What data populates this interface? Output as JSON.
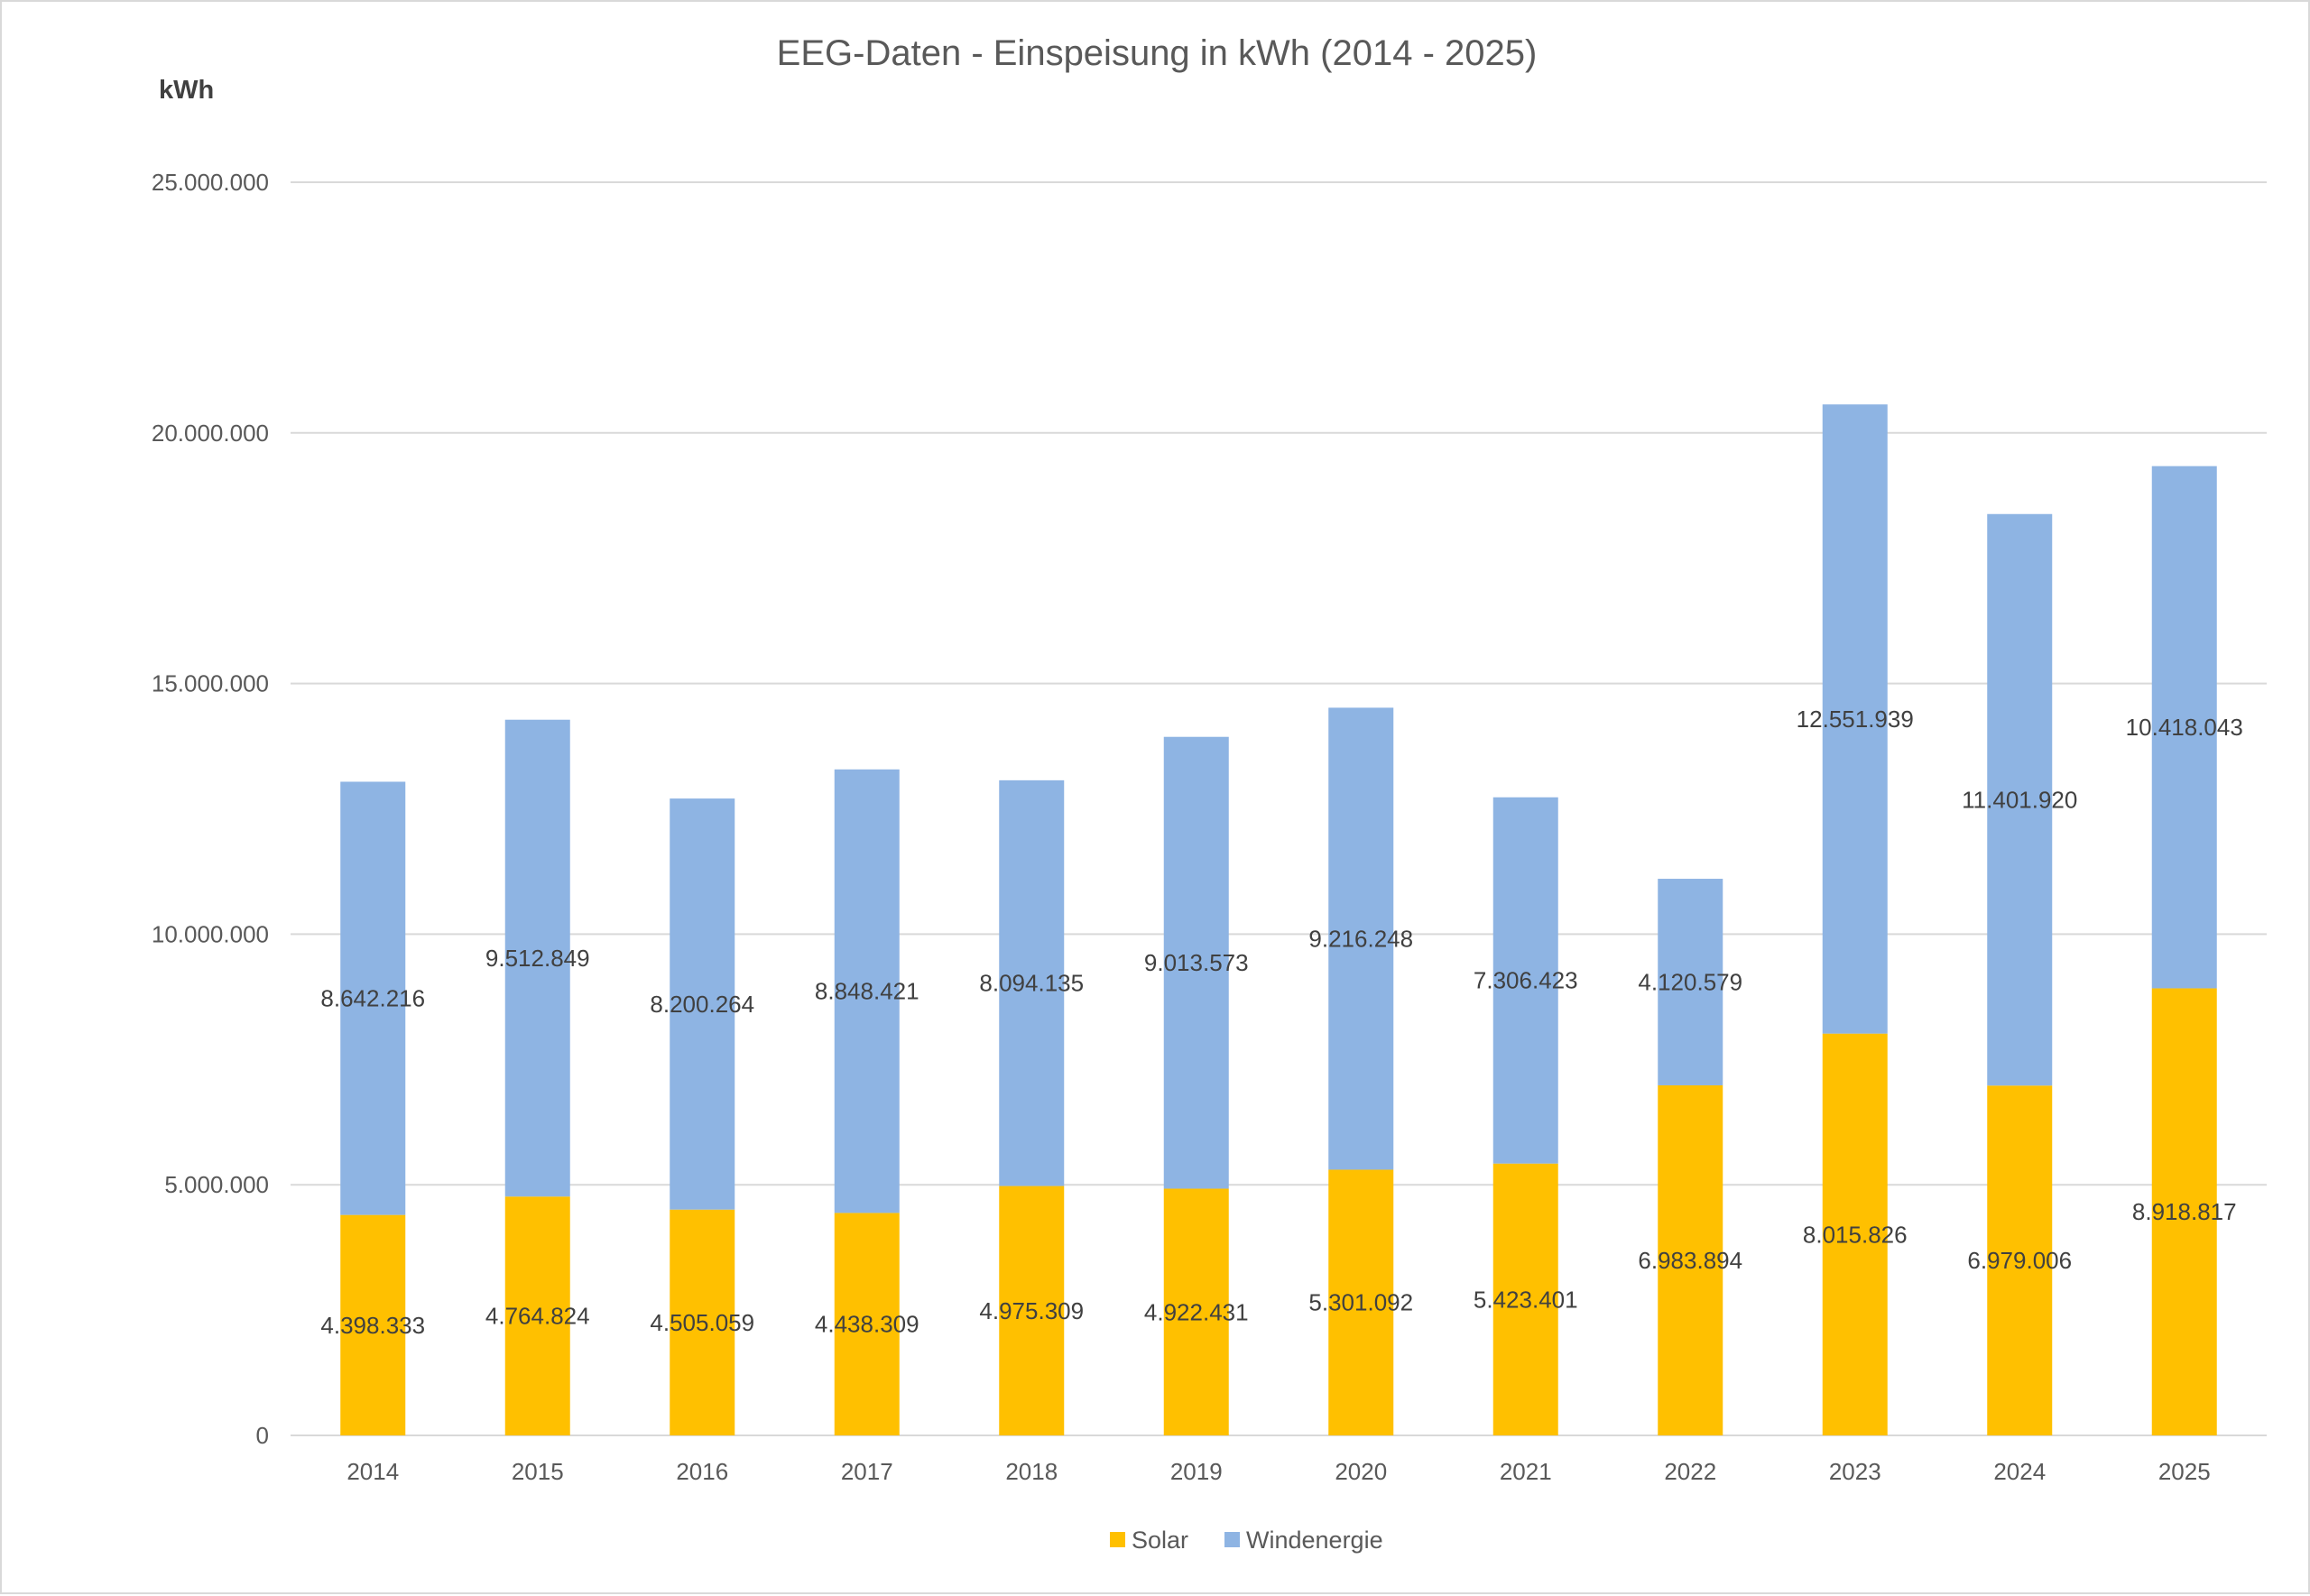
{
  "chart_data": {
    "type": "bar",
    "stacked": true,
    "title": "EEG-Daten - Einspeisung in kWh (2014 - 2025)",
    "unit_label": "kWh",
    "xlabel": "",
    "ylabel": "",
    "ylim": [
      0,
      25000000
    ],
    "yticks": [
      0,
      5000000,
      10000000,
      15000000,
      20000000,
      25000000
    ],
    "ytick_labels": [
      "0",
      "5.000.000",
      "10.000.000",
      "15.000.000",
      "20.000.000",
      "25.000.000"
    ],
    "grid": true,
    "legend_position": "bottom",
    "categories": [
      "2014",
      "2015",
      "2016",
      "2017",
      "2018",
      "2019",
      "2020",
      "2021",
      "2022",
      "2023",
      "2024",
      "2025"
    ],
    "series": [
      {
        "name": "Solar",
        "color": "#ffc000",
        "values": [
          4398333,
          4764824,
          4505059,
          4438309,
          4975309,
          4922431,
          5301092,
          5423401,
          6983894,
          8015826,
          6979006,
          8918817
        ],
        "labels": [
          "4.398.333",
          "4.764.824",
          "4.505.059",
          "4.438.309",
          "4.975.309",
          "4.922.431",
          "5.301.092",
          "5.423.401",
          "6.983.894",
          "8.015.826",
          "6.979.006",
          "8.918.817"
        ]
      },
      {
        "name": "Windenergie",
        "color": "#8eb4e3",
        "values": [
          8642216,
          9512849,
          8200264,
          8848421,
          8094135,
          9013573,
          9216248,
          7306423,
          4120579,
          12551939,
          11401920,
          10418043
        ],
        "labels": [
          "8.642.216",
          "9.512.849",
          "8.200.264",
          "8.848.421",
          "8.094.135",
          "9.013.573",
          "9.216.248",
          "7.306.423",
          "4.120.579",
          "12.551.939",
          "11.401.920",
          "10.418.043"
        ]
      }
    ]
  }
}
